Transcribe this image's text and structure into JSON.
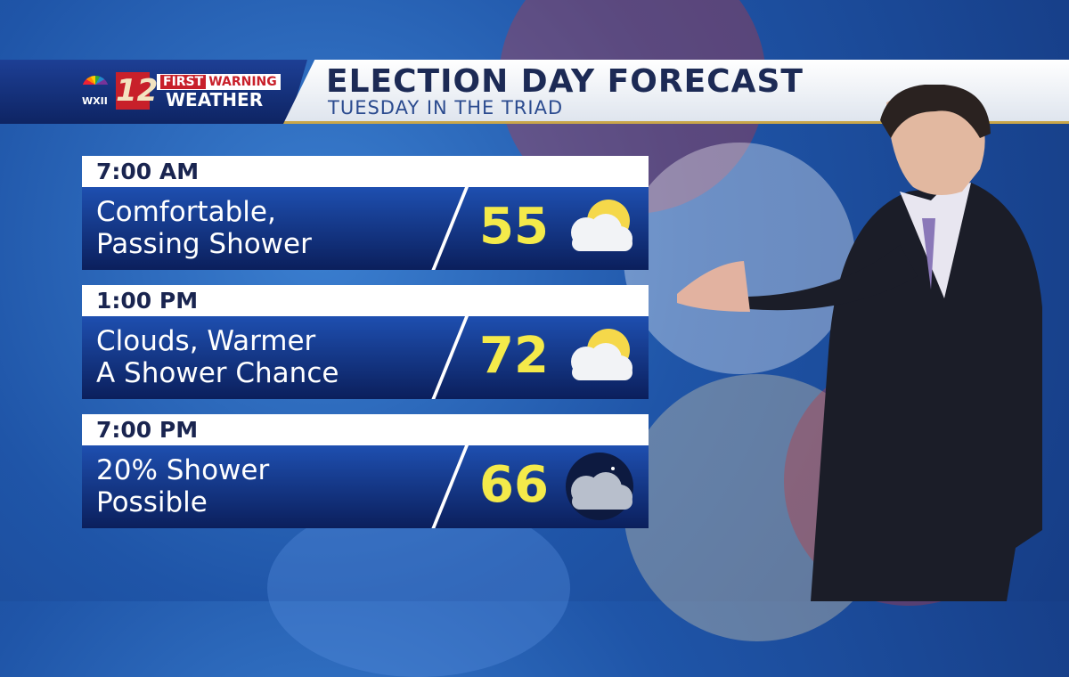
{
  "header": {
    "station_call": "WXII",
    "channel": "12",
    "brand_first": "FIRST",
    "brand_warning": "WARNING",
    "brand_weather": "WEATHER",
    "title": "ELECTION DAY FORECAST",
    "subtitle": "TUESDAY IN THE TRIAD"
  },
  "forecasts": [
    {
      "time": "7:00 AM",
      "line1": "Comfortable,",
      "line2": "Passing Shower",
      "temp": "55",
      "icon": "partly-sunny-cloud-icon"
    },
    {
      "time": "1:00 PM",
      "line1": "Clouds, Warmer",
      "line2": "A Shower Chance",
      "temp": "72",
      "icon": "partly-sunny-cloud-icon"
    },
    {
      "time": "7:00 PM",
      "line1": "20% Shower",
      "line2": "Possible",
      "temp": "66",
      "icon": "night-cloud-icon"
    }
  ],
  "colors": {
    "temp": "#f4ea4a",
    "panel": "#1e4fb0",
    "title": "#1c2a55"
  }
}
